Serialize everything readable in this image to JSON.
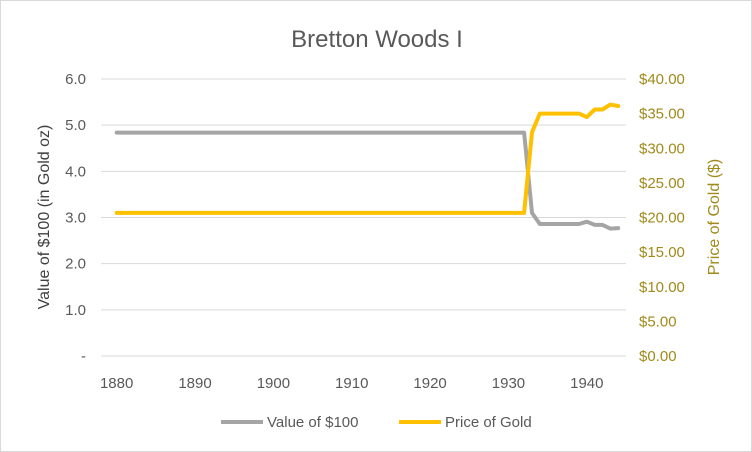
{
  "chart_data": {
    "type": "line",
    "title": "Bretton Woods I",
    "xlabel": "",
    "ylabel": "Value of $100 (in Gold oz)",
    "y2label": "Price of Gold ($)",
    "xlim": [
      1878,
      1945
    ],
    "ylim": [
      0,
      6
    ],
    "y2lim": [
      0,
      40
    ],
    "x_ticks": [
      {
        "value": 1880,
        "label": "1880"
      },
      {
        "value": 1890,
        "label": "1890"
      },
      {
        "value": 1900,
        "label": "1900"
      },
      {
        "value": 1910,
        "label": "1910"
      },
      {
        "value": 1920,
        "label": "1920"
      },
      {
        "value": 1930,
        "label": "1930"
      },
      {
        "value": 1940,
        "label": "1940"
      }
    ],
    "y_ticks": [
      {
        "value": 0,
        "label": "-"
      },
      {
        "value": 1,
        "label": "1.0"
      },
      {
        "value": 2,
        "label": "2.0"
      },
      {
        "value": 3,
        "label": "3.0"
      },
      {
        "value": 4,
        "label": "4.0"
      },
      {
        "value": 5,
        "label": "5.0"
      },
      {
        "value": 6,
        "label": "6.0"
      }
    ],
    "y2_ticks": [
      {
        "value": 0,
        "label": "$0.00"
      },
      {
        "value": 5,
        "label": "$5.00"
      },
      {
        "value": 10,
        "label": "$10.00"
      },
      {
        "value": 15,
        "label": "$15.00"
      },
      {
        "value": 20,
        "label": "$20.00"
      },
      {
        "value": 25,
        "label": "$25.00"
      },
      {
        "value": 30,
        "label": "$30.00"
      },
      {
        "value": 35,
        "label": "$35.00"
      },
      {
        "value": 40,
        "label": "$40.00"
      }
    ],
    "grid": true,
    "legend_position": "bottom",
    "series": [
      {
        "name": "Value of $100",
        "axis": "left",
        "color": "#a5a5a5",
        "points": [
          [
            1880,
            4.84
          ],
          [
            1890,
            4.84
          ],
          [
            1900,
            4.84
          ],
          [
            1910,
            4.84
          ],
          [
            1920,
            4.84
          ],
          [
            1932,
            4.84
          ],
          [
            1933,
            3.1
          ],
          [
            1934,
            2.86
          ],
          [
            1935,
            2.86
          ],
          [
            1936,
            2.86
          ],
          [
            1937,
            2.86
          ],
          [
            1938,
            2.86
          ],
          [
            1939,
            2.86
          ],
          [
            1940,
            2.91
          ],
          [
            1941,
            2.84
          ],
          [
            1942,
            2.84
          ],
          [
            1943,
            2.76
          ],
          [
            1944,
            2.77
          ]
        ]
      },
      {
        "name": "Price of Gold",
        "axis": "right",
        "color": "#ffc000",
        "points": [
          [
            1880,
            20.67
          ],
          [
            1890,
            20.67
          ],
          [
            1900,
            20.67
          ],
          [
            1910,
            20.67
          ],
          [
            1920,
            20.67
          ],
          [
            1932,
            20.67
          ],
          [
            1933,
            32.3
          ],
          [
            1934,
            35
          ],
          [
            1935,
            35
          ],
          [
            1936,
            35
          ],
          [
            1937,
            35
          ],
          [
            1938,
            35
          ],
          [
            1939,
            35
          ],
          [
            1940,
            34.5
          ],
          [
            1941,
            35.6
          ],
          [
            1942,
            35.6
          ],
          [
            1943,
            36.3
          ],
          [
            1944,
            36.1
          ]
        ]
      }
    ]
  }
}
